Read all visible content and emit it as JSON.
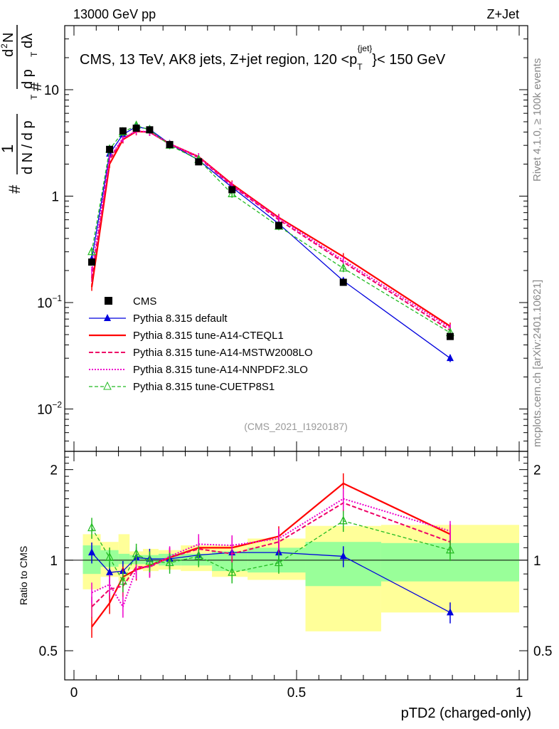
{
  "header": {
    "left": "13000 GeV pp",
    "right": "Z+Jet"
  },
  "plot_title": {
    "main": "CMS, 13 TeV, AK8 jets, Z+jet region, 120 <p",
    "sub": "T",
    "sup": "{jet}",
    "tail": "}< 150 GeV"
  },
  "ylabel_main": {
    "hash": "#",
    "one": "1",
    "dN": "d N / d p",
    "T": "T",
    "hash2": "#",
    "d2N": "d",
    "two": "2",
    "N": "N",
    "dpT": "d p",
    "T2": "T",
    "dl": "dλ"
  },
  "ylabel_ratio": "Ratio to CMS",
  "xlabel": "pTD2 (charged-only)",
  "side_text": {
    "rivet": "Rivet 4.1.0, ≥ 100k events",
    "mcplots": "mcplots.cern.ch [arXiv:2401.10621]"
  },
  "analysis_id": "(CMS_2021_I1920187)",
  "colors": {
    "data": "#000000",
    "default": "#0000dd",
    "cteql1": "#ff0000",
    "mstw": "#ee0066",
    "nnpdf": "#ee00cc",
    "cuetp8s1": "#22bb22",
    "band_inner": "#99ff99",
    "band_outer": "#ffff99"
  },
  "chart_data": {
    "type": "line",
    "x": [
      0.04,
      0.08,
      0.11,
      0.14,
      0.17,
      0.215,
      0.28,
      0.355,
      0.46,
      0.605,
      0.845
    ],
    "xlim": [
      0,
      1
    ],
    "main_ylim": [
      0.004,
      40
    ],
    "main_yticks": [
      {
        "v": 0.01,
        "base": "10",
        "exp": "−2"
      },
      {
        "v": 0.1,
        "base": "10",
        "exp": "−1"
      },
      {
        "v": 1,
        "base": "1",
        "exp": ""
      },
      {
        "v": 10,
        "base": "10",
        "exp": ""
      }
    ],
    "ratio_ylim": [
      0.4,
      2.3
    ],
    "ratio_yticks": [
      {
        "v": 0.5,
        "label": "0.5"
      },
      {
        "v": 1,
        "label": "1"
      },
      {
        "v": 2,
        "label": "2"
      }
    ],
    "xticks": [
      {
        "v": 0,
        "label": "0"
      },
      {
        "v": 0.5,
        "label": "0.5"
      },
      {
        "v": 1,
        "label": "1"
      }
    ],
    "bin_edges": [
      0.02,
      0.06,
      0.1,
      0.125,
      0.155,
      0.19,
      0.24,
      0.31,
      0.39,
      0.52,
      0.69,
      1.0
    ],
    "band_inner": [
      [
        0.9,
        1.12
      ],
      [
        0.95,
        1.08
      ],
      [
        0.97,
        1.05
      ],
      [
        0.97,
        1.04
      ],
      [
        0.97,
        1.04
      ],
      [
        0.96,
        1.05
      ],
      [
        0.96,
        1.05
      ],
      [
        0.92,
        1.07
      ],
      [
        0.91,
        1.1
      ],
      [
        0.82,
        1.15
      ],
      [
        0.85,
        1.14
      ]
    ],
    "band_outer": [
      [
        0.8,
        1.22
      ],
      [
        0.88,
        1.15
      ],
      [
        0.85,
        1.22
      ],
      [
        0.93,
        1.07
      ],
      [
        0.92,
        1.09
      ],
      [
        0.93,
        1.08
      ],
      [
        0.92,
        1.12
      ],
      [
        0.88,
        1.12
      ],
      [
        0.86,
        1.18
      ],
      [
        0.58,
        1.3
      ],
      [
        0.67,
        1.31
      ]
    ],
    "data": {
      "name": "CMS",
      "values": [
        0.24,
        2.75,
        4.1,
        4.35,
        4.2,
        3.05,
        2.1,
        1.15,
        0.53,
        0.155,
        0.048
      ]
    },
    "series": [
      {
        "name": "Pythia 8.315 default",
        "key": "default",
        "values": [
          0.255,
          2.5,
          3.8,
          4.5,
          4.25,
          3.1,
          2.18,
          1.21,
          0.55,
          0.16,
          0.03
        ],
        "ratio": [
          1.06,
          0.91,
          0.92,
          1.02,
          1.01,
          1.01,
          1.04,
          1.06,
          1.06,
          1.03,
          0.67
        ]
      },
      {
        "name": "Pythia 8.315 tune-A14-CTEQL1",
        "key": "cteql1",
        "values": [
          0.14,
          2.0,
          3.4,
          4.05,
          4.0,
          3.1,
          2.35,
          1.3,
          0.63,
          0.27,
          0.06
        ],
        "ratio": [
          0.6,
          0.72,
          0.88,
          0.93,
          0.96,
          1.02,
          1.1,
          1.1,
          1.2,
          1.8,
          1.22
        ]
      },
      {
        "name": "Pythia 8.315 tune-A14-MSTW2008LO",
        "key": "mstw",
        "values": [
          0.17,
          2.2,
          3.45,
          4.1,
          4.0,
          3.1,
          2.3,
          1.25,
          0.6,
          0.24,
          0.055
        ],
        "ratio": [
          0.7,
          0.8,
          0.82,
          0.95,
          0.95,
          1.02,
          1.09,
          1.05,
          1.15,
          1.55,
          1.15
        ]
      },
      {
        "name": "Pythia 8.315 tune-A14-NNPDF2.3LO",
        "key": "nnpdf",
        "values": [
          0.2,
          2.3,
          3.5,
          4.1,
          4.0,
          3.1,
          2.35,
          1.27,
          0.62,
          0.25,
          0.058
        ],
        "ratio": [
          0.78,
          0.83,
          0.7,
          0.94,
          0.95,
          1.03,
          1.13,
          1.12,
          1.18,
          1.6,
          1.25
        ]
      },
      {
        "name": "Pythia 8.315 tune-CUETP8S1",
        "key": "cuetp8s1",
        "values": [
          0.3,
          2.75,
          4.0,
          4.6,
          4.2,
          3.0,
          2.2,
          1.05,
          0.52,
          0.21,
          0.052
        ],
        "ratio": [
          1.28,
          1.02,
          0.85,
          1.05,
          0.99,
          0.98,
          1.03,
          0.91,
          0.98,
          1.35,
          1.08
        ]
      }
    ]
  }
}
